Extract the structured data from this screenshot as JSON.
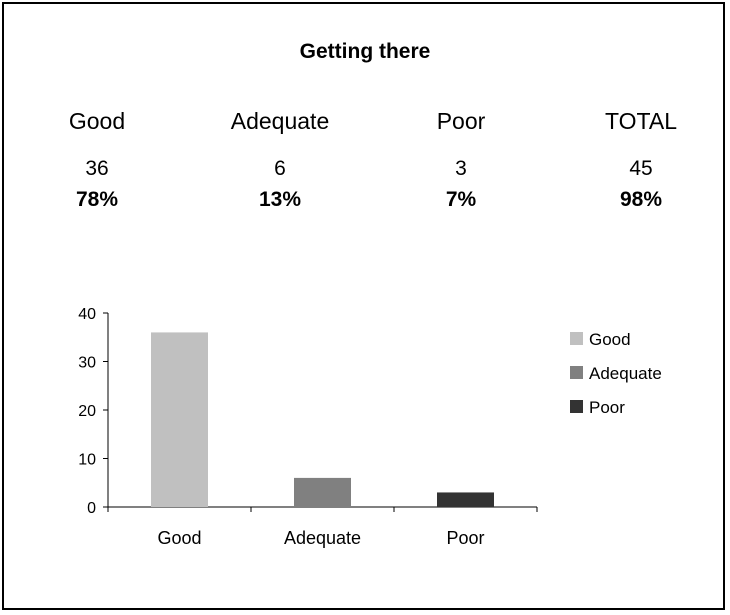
{
  "title": "Getting there",
  "summary": [
    {
      "label": "Good",
      "count": "36",
      "percent": "78%"
    },
    {
      "label": "Adequate",
      "count": "6",
      "percent": "13%"
    },
    {
      "label": "Poor",
      "count": "3",
      "percent": "7%"
    },
    {
      "label": "TOTAL",
      "count": "45",
      "percent": "98%"
    }
  ],
  "chart_data": {
    "type": "bar",
    "categories": [
      "Good",
      "Adequate",
      "Poor"
    ],
    "values": [
      36,
      6,
      3
    ],
    "colors": [
      "#c0c0c0",
      "#808080",
      "#333333"
    ],
    "ylim": [
      0,
      40
    ],
    "yticks": [
      0,
      10,
      20,
      30,
      40
    ],
    "grid": false,
    "legend": {
      "position": "right",
      "entries": [
        "Good",
        "Adequate",
        "Poor"
      ]
    }
  }
}
